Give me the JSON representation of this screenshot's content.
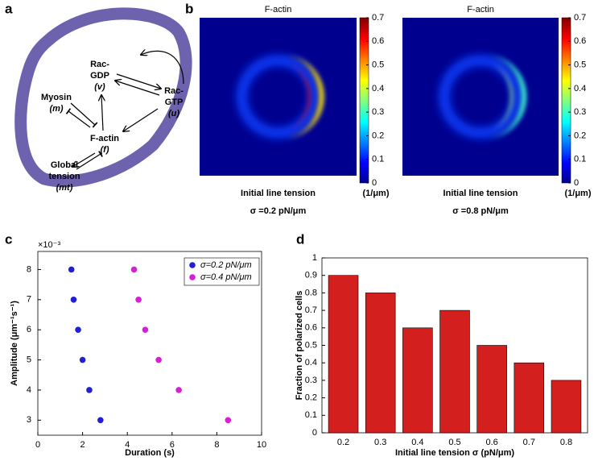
{
  "panel_labels": [
    "a",
    "b",
    "c",
    "d"
  ],
  "diagram": {
    "nodes": [
      {
        "label": "Rac-",
        "label2": "GDP",
        "var": "(v)"
      },
      {
        "label": "Rac-",
        "label2": "GTP",
        "var": "(u)"
      },
      {
        "label": "Myosin",
        "var": "(m)"
      },
      {
        "label": "F-actin",
        "var": "(f)"
      },
      {
        "label": "Global",
        "label2": "tension",
        "var": "(mt)"
      }
    ]
  },
  "chart_data": [
    {
      "type": "heatmap",
      "title": "F-actin",
      "xlabel": "Initial line tension",
      "xlabel2": "σ =0.2 pN/μm",
      "colorbar_label": "(1/μm)",
      "clim": [
        0,
        0.7
      ],
      "cticks": [
        0,
        0.1,
        0.2,
        0.3,
        0.4,
        0.5,
        0.6,
        0.7
      ]
    },
    {
      "type": "heatmap",
      "title": "F-actin",
      "xlabel": "Initial line tension",
      "xlabel2": "σ =0.8 pN/μm",
      "colorbar_label": "(1/μm)",
      "clim": [
        0,
        0.7
      ],
      "cticks": [
        0,
        0.1,
        0.2,
        0.3,
        0.4,
        0.5,
        0.6,
        0.7
      ]
    },
    {
      "type": "scatter",
      "xlabel": "Duration (s)",
      "ylabel": "Amplitude (μm⁻¹s⁻¹)",
      "y_exponent": "×10⁻³",
      "xlim": [
        0,
        10
      ],
      "xticks": [
        0,
        2,
        4,
        6,
        8,
        10
      ],
      "ylim": [
        2.5,
        8.6
      ],
      "yticks": [
        3,
        4,
        5,
        6,
        7,
        8
      ],
      "legend": "upper right",
      "series": [
        {
          "name": "σ=0.2 pN/μm",
          "color": "#1f1fd6",
          "x": [
            1.5,
            1.6,
            1.8,
            2.0,
            2.3,
            2.8
          ],
          "values": [
            8,
            7,
            6,
            5,
            4,
            3
          ]
        },
        {
          "name": "σ=0.4 pN/μm",
          "color": "#d61fd6",
          "x": [
            4.3,
            4.5,
            4.8,
            5.4,
            6.3,
            8.5
          ],
          "values": [
            8,
            7,
            6,
            5,
            4,
            3
          ]
        }
      ]
    },
    {
      "type": "bar",
      "xlabel": "Initial line tension σ (pN/μm)",
      "ylabel": "Fraction of polarized cells",
      "categories": [
        "0.2",
        "0.3",
        "0.4",
        "0.5",
        "0.6",
        "0.7",
        "0.8"
      ],
      "values": [
        0.9,
        0.8,
        0.6,
        0.7,
        0.5,
        0.4,
        0.3
      ],
      "color": "#d41f1f",
      "ylim": [
        0,
        1
      ],
      "yticks": [
        0,
        0.1,
        0.2,
        0.3,
        0.4,
        0.5,
        0.6,
        0.7,
        0.8,
        0.9,
        1
      ]
    }
  ]
}
